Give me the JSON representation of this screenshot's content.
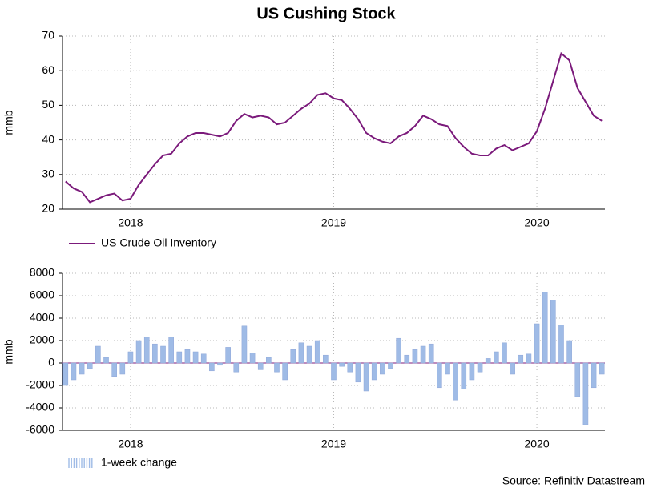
{
  "source": "Source: Refinitiv Datastream",
  "chart_data": [
    {
      "type": "line",
      "title": "US Cushing Stock",
      "ylabel": "mmb",
      "x": [
        2017.68,
        2017.72,
        2017.76,
        2017.8,
        2017.84,
        2017.88,
        2017.92,
        2017.96,
        2018.0,
        2018.04,
        2018.08,
        2018.12,
        2018.16,
        2018.2,
        2018.24,
        2018.28,
        2018.32,
        2018.36,
        2018.4,
        2018.44,
        2018.48,
        2018.52,
        2018.56,
        2018.6,
        2018.64,
        2018.68,
        2018.72,
        2018.76,
        2018.8,
        2018.84,
        2018.88,
        2018.92,
        2018.96,
        2019.0,
        2019.04,
        2019.08,
        2019.12,
        2019.16,
        2019.2,
        2019.24,
        2019.28,
        2019.32,
        2019.36,
        2019.4,
        2019.44,
        2019.48,
        2019.52,
        2019.56,
        2019.6,
        2019.64,
        2019.68,
        2019.72,
        2019.76,
        2019.8,
        2019.84,
        2019.88,
        2019.92,
        2019.96,
        2020.0,
        2020.04,
        2020.08,
        2020.12,
        2020.16,
        2020.2,
        2020.24,
        2020.28,
        2020.32
      ],
      "xlim": [
        2017.665,
        2020.335
      ],
      "xticks": [
        2018,
        2019,
        2020
      ],
      "ylim": [
        20,
        70
      ],
      "yticks": [
        20,
        30,
        40,
        50,
        60,
        70
      ],
      "grid": true,
      "legend": "below",
      "series": [
        {
          "name": "US Crude Oil Inventory",
          "color": "#7b1a7b",
          "values": [
            28,
            26,
            25,
            22,
            23,
            24,
            24.5,
            22.5,
            23,
            27,
            30,
            33,
            35.5,
            36,
            39,
            41,
            42,
            42,
            41.5,
            41,
            42,
            45.5,
            47.5,
            46.5,
            47,
            46.5,
            44.5,
            45,
            47,
            49,
            50.5,
            53,
            53.5,
            52,
            51.5,
            49,
            46,
            42,
            40.5,
            39.5,
            39,
            41,
            42,
            44,
            47,
            46,
            44.5,
            44,
            40.5,
            38,
            36,
            35.5,
            35.5,
            37.5,
            38.5,
            37,
            38,
            39,
            42.5,
            49,
            57,
            65,
            63,
            55,
            51,
            47,
            45.5
          ]
        }
      ]
    },
    {
      "type": "bar",
      "ylabel": "mmb",
      "x": [
        2017.68,
        2017.72,
        2017.76,
        2017.8,
        2017.84,
        2017.88,
        2017.92,
        2017.96,
        2018.0,
        2018.04,
        2018.08,
        2018.12,
        2018.16,
        2018.2,
        2018.24,
        2018.28,
        2018.32,
        2018.36,
        2018.4,
        2018.44,
        2018.48,
        2018.52,
        2018.56,
        2018.6,
        2018.64,
        2018.68,
        2018.72,
        2018.76,
        2018.8,
        2018.84,
        2018.88,
        2018.92,
        2018.96,
        2019.0,
        2019.04,
        2019.08,
        2019.12,
        2019.16,
        2019.2,
        2019.24,
        2019.28,
        2019.32,
        2019.36,
        2019.4,
        2019.44,
        2019.48,
        2019.52,
        2019.56,
        2019.6,
        2019.64,
        2019.68,
        2019.72,
        2019.76,
        2019.8,
        2019.84,
        2019.88,
        2019.92,
        2019.96,
        2020.0,
        2020.04,
        2020.08,
        2020.12,
        2020.16,
        2020.2,
        2020.24,
        2020.28,
        2020.32
      ],
      "xlim": [
        2017.665,
        2020.335
      ],
      "xticks": [
        2018,
        2019,
        2020
      ],
      "ylim": [
        -6000,
        8000
      ],
      "yticks": [
        -6000,
        -4000,
        -2000,
        0,
        2000,
        4000,
        6000,
        8000
      ],
      "grid": true,
      "legend": "below",
      "series": [
        {
          "name": "1-week change",
          "color": "#9fbbe6",
          "values": [
            -2000,
            -1500,
            -1000,
            -500,
            1500,
            500,
            -1200,
            -1000,
            1000,
            2000,
            2300,
            1700,
            1500,
            2300,
            1000,
            1200,
            1000,
            800,
            -700,
            -200,
            1400,
            -800,
            3300,
            900,
            -600,
            500,
            -800,
            -1500,
            1200,
            1800,
            1500,
            2000,
            700,
            -1500,
            -300,
            -800,
            -1700,
            -2500,
            -1500,
            -1000,
            -500,
            2200,
            700,
            1200,
            1500,
            1700,
            -2200,
            -1000,
            -3300,
            -2300,
            -1500,
            -800,
            400,
            1000,
            1800,
            -1000,
            700,
            800,
            3500,
            6300,
            5600,
            3400,
            2000,
            -3000,
            -5500,
            -2200,
            -1000
          ]
        }
      ]
    }
  ]
}
